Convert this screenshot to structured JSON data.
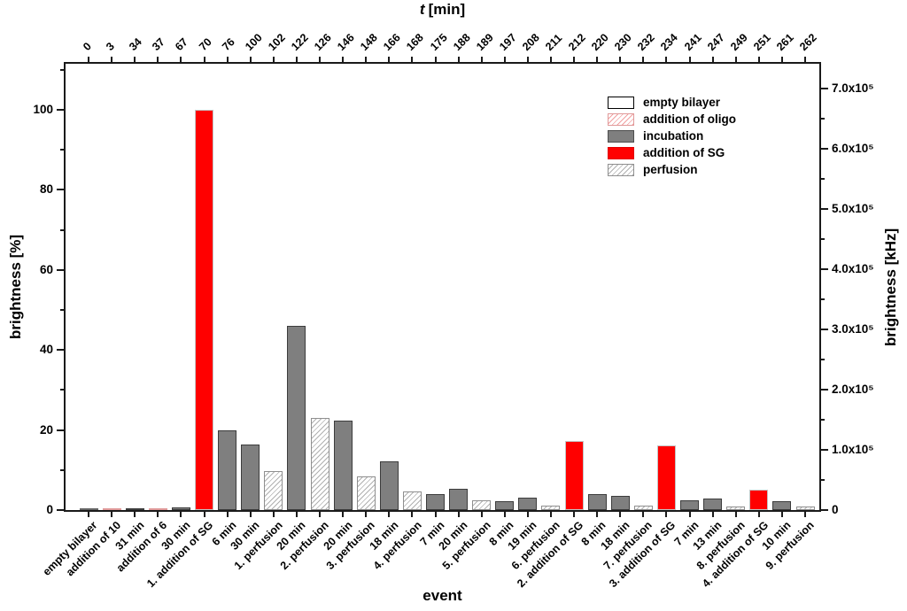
{
  "chart_data": {
    "type": "bar",
    "title_top": {
      "symbol": "t",
      "unit": "[min]"
    },
    "xlabel": "event",
    "ylabel_left": "brightness [%]",
    "ylabel_right": "brightness [kHz]",
    "left_axis": {
      "tick_labels": [
        0,
        20,
        40,
        60,
        80,
        100
      ],
      "minor_step": 10,
      "ylim": [
        0,
        111.5
      ]
    },
    "right_axis": {
      "tick_labels": [
        "0",
        "1.0x10⁵",
        "2.0x10⁵",
        "3.0x10⁵",
        "4.0x10⁵",
        "5.0x10⁵",
        "6.0x10⁵",
        "7.0x10⁵"
      ],
      "tick_values": [
        0,
        100000,
        200000,
        300000,
        400000,
        500000,
        600000,
        700000
      ],
      "minor_step": 50000,
      "ylim": [
        0,
        745000
      ]
    },
    "legend": [
      {
        "key": "empty",
        "label": "empty bilayer"
      },
      {
        "key": "oligo",
        "label": "addition of oligo"
      },
      {
        "key": "incubation",
        "label": "incubation"
      },
      {
        "key": "sg",
        "label": "addition of SG"
      },
      {
        "key": "perfusion",
        "label": "perfusion"
      }
    ],
    "legend_position": "upper right inside",
    "grid": false,
    "bars": [
      {
        "t": "0",
        "event": "empty bilayer",
        "type": "empty",
        "value": 0.3
      },
      {
        "t": "3",
        "event": "addition of 10",
        "type": "oligo",
        "value": 0.4
      },
      {
        "t": "34",
        "event": "31 min",
        "type": "incubation",
        "value": 0.5
      },
      {
        "t": "37",
        "event": "addition of 6",
        "type": "oligo",
        "value": 0.4
      },
      {
        "t": "67",
        "event": "30 min",
        "type": "incubation",
        "value": 0.6
      },
      {
        "t": "70",
        "event": "1. addition of SG",
        "type": "sg",
        "value": 100
      },
      {
        "t": "76",
        "event": "6 min",
        "type": "incubation",
        "value": 20
      },
      {
        "t": "100",
        "event": "30 min",
        "type": "incubation",
        "value": 16.4
      },
      {
        "t": "102",
        "event": "1. perfusion",
        "type": "perfusion",
        "value": 9.7
      },
      {
        "t": "122",
        "event": "20 min",
        "type": "incubation",
        "value": 46
      },
      {
        "t": "126",
        "event": "2. perfusion",
        "type": "perfusion",
        "value": 23.1
      },
      {
        "t": "146",
        "event": "20 min",
        "type": "incubation",
        "value": 22.4
      },
      {
        "t": "148",
        "event": "3. perfusion",
        "type": "perfusion",
        "value": 8.4
      },
      {
        "t": "166",
        "event": "18 min",
        "type": "incubation",
        "value": 12.1
      },
      {
        "t": "168",
        "event": "4. perfusion",
        "type": "perfusion",
        "value": 4.6
      },
      {
        "t": "175",
        "event": "7 min",
        "type": "incubation",
        "value": 4.1
      },
      {
        "t": "188",
        "event": "20 min",
        "type": "incubation",
        "value": 5.3
      },
      {
        "t": "189",
        "event": "5. perfusion",
        "type": "perfusion",
        "value": 2.4
      },
      {
        "t": "197",
        "event": "8 min",
        "type": "incubation",
        "value": 2.3
      },
      {
        "t": "208",
        "event": "19 min",
        "type": "incubation",
        "value": 3.1
      },
      {
        "t": "211",
        "event": "6. perfusion",
        "type": "perfusion",
        "value": 1.1
      },
      {
        "t": "212",
        "event": "2. addition of SG",
        "type": "sg",
        "value": 17.3
      },
      {
        "t": "220",
        "event": "8 min",
        "type": "incubation",
        "value": 3.9
      },
      {
        "t": "230",
        "event": "18 min",
        "type": "incubation",
        "value": 3.6
      },
      {
        "t": "232",
        "event": "7. perfusion",
        "type": "perfusion",
        "value": 1.2
      },
      {
        "t": "234",
        "event": "3. addition of SG",
        "type": "sg",
        "value": 16.2
      },
      {
        "t": "241",
        "event": "7 min",
        "type": "incubation",
        "value": 2.4
      },
      {
        "t": "247",
        "event": "13 min",
        "type": "incubation",
        "value": 2.9
      },
      {
        "t": "249",
        "event": "8. perfusion",
        "type": "perfusion",
        "value": 0.9
      },
      {
        "t": "251",
        "event": "4. addition of SG",
        "type": "sg",
        "value": 5.0
      },
      {
        "t": "261",
        "event": "10 min",
        "type": "incubation",
        "value": 2.2
      },
      {
        "t": "262",
        "event": "9. perfusion",
        "type": "perfusion",
        "value": 0.8
      }
    ],
    "colors": {
      "addition_of_sg": "#ff0000",
      "incubation": "#7f7f7f",
      "oligo_hatch": "#f2a0a0",
      "perfusion_hatch": "#b0b0b0",
      "empty_bilayer": "#ffffff",
      "axis": "#1a1a1a"
    }
  }
}
